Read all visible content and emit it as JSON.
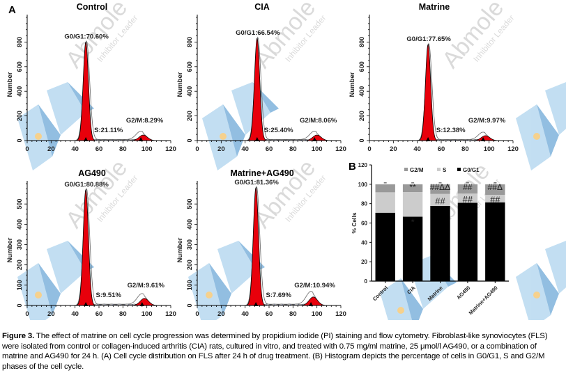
{
  "figure": {
    "panel_labels": {
      "a": "A",
      "b": "B"
    },
    "watermark": {
      "brand": "Abmole",
      "tagline": "Inhibitor Leader",
      "colors": {
        "light_blue": "#b8d9f0",
        "mid_blue": "#7fb3dc",
        "dot": "#f5c97a",
        "text": "#bdbdbd"
      }
    },
    "colors": {
      "peak_fill": "#e8000b",
      "s_hatch": "#3344aa",
      "bar_g0g1": "#000000",
      "bar_s": "#cccccc",
      "bar_g2m": "#999999"
    }
  },
  "chart_data": [
    {
      "type": "area",
      "panel": "A",
      "title": "Control",
      "xlabel": "",
      "ylabel": "Number",
      "xlim": [
        0,
        120
      ],
      "ylim": [
        0,
        1000
      ],
      "xticks": [
        0,
        20,
        40,
        60,
        80,
        100,
        120
      ],
      "yticks": [
        0,
        200,
        400,
        600,
        800
      ],
      "peaks": {
        "g0g1_center": 49,
        "g0g1_height": 800,
        "g2m_center": 97,
        "g2m_height": 45
      },
      "annotations": {
        "g0g1": "G0/G1:70.60%",
        "s": "S:21.11%",
        "g2m": "G2/M:8.29%"
      }
    },
    {
      "type": "area",
      "panel": "A",
      "title": "CIA",
      "xlabel": "",
      "ylabel": "Number",
      "xlim": [
        0,
        120
      ],
      "ylim": [
        0,
        1000
      ],
      "xticks": [
        0,
        20,
        40,
        60,
        80,
        100,
        120
      ],
      "yticks": [
        0,
        200,
        400,
        600,
        800
      ],
      "peaks": {
        "g0g1_center": 50,
        "g0g1_height": 830,
        "g2m_center": 100,
        "g2m_height": 45
      },
      "annotations": {
        "g0g1": "G0/G1:66.54%",
        "s": "S:25.40%",
        "g2m": "G2/M:8.06%"
      }
    },
    {
      "type": "area",
      "panel": "A",
      "title": "Matrine",
      "xlabel": "",
      "ylabel": "Number",
      "xlim": [
        0,
        120
      ],
      "ylim": [
        0,
        1000
      ],
      "xticks": [
        0,
        20,
        40,
        60,
        80,
        100,
        120
      ],
      "yticks": [
        0,
        200,
        400,
        600,
        800
      ],
      "peaks": {
        "g0g1_center": 49,
        "g0g1_height": 780,
        "g2m_center": 97,
        "g2m_height": 40
      },
      "annotations": {
        "g0g1": "G0/G1:77.65%",
        "s": "S:12.38%",
        "g2m": "G2/M:9.97%"
      }
    },
    {
      "type": "area",
      "panel": "A",
      "title": "AG490",
      "xlabel": "",
      "ylabel": "Number",
      "xlim": [
        0,
        120
      ],
      "ylim": [
        0,
        600
      ],
      "xticks": [
        0,
        20,
        40,
        60,
        80,
        100,
        120
      ],
      "yticks": [
        0,
        100,
        200,
        300,
        400,
        500
      ],
      "peaks": {
        "g0g1_center": 49,
        "g0g1_height": 570,
        "g2m_center": 98,
        "g2m_height": 35
      },
      "annotations": {
        "g0g1": "G0/G1:80.88%",
        "s": "S:9.51%",
        "g2m": "G2/M:9.61%"
      }
    },
    {
      "type": "area",
      "panel": "A",
      "title": "Matrine+AG490",
      "xlabel": "",
      "ylabel": "Number",
      "xlim": [
        0,
        120
      ],
      "ylim": [
        0,
        600
      ],
      "xticks": [
        0,
        20,
        40,
        60,
        80,
        100,
        120
      ],
      "yticks": [
        0,
        100,
        200,
        300,
        400,
        500
      ],
      "peaks": {
        "g0g1_center": 49,
        "g0g1_height": 580,
        "g2m_center": 97,
        "g2m_height": 42
      },
      "annotations": {
        "g0g1": "G0/G1:81.36%",
        "s": "S:7.69%",
        "g2m": "G2/M:10.94%"
      }
    },
    {
      "type": "bar",
      "stacked": true,
      "panel": "B",
      "title": "",
      "xlabel": "",
      "ylabel": "% Cells",
      "ylim": [
        0,
        120
      ],
      "yticks": [
        0,
        20,
        40,
        60,
        80,
        100,
        120
      ],
      "legend": {
        "position": "top",
        "entries": [
          "G2/M",
          "S",
          "G0/G1"
        ]
      },
      "categories": [
        "Control",
        "CIA",
        "Matrine",
        "AG490",
        "Matrine+AG490"
      ],
      "series": [
        {
          "name": "G0/G1",
          "values": [
            70.6,
            66.54,
            77.65,
            80.88,
            81.36
          ]
        },
        {
          "name": "S",
          "values": [
            21.11,
            25.4,
            12.38,
            9.51,
            7.69
          ]
        },
        {
          "name": "G2/M",
          "values": [
            8.29,
            8.06,
            9.97,
            9.61,
            10.94
          ]
        }
      ],
      "significance": {
        "g0g1": [
          "",
          "*",
          "",
          "",
          ""
        ],
        "s": [
          "",
          "",
          "##",
          "##",
          "##"
        ],
        "g2m": [
          "",
          "**",
          "##ΔΔ",
          "##",
          "##Δ"
        ]
      }
    }
  ],
  "caption": {
    "label": "Figure 3.",
    "text": " The effect of matrine on cell cycle progression was determined by propidium iodide (PI) staining and flow cytometry. Fibroblast-like synoviocytes (FLS) were isolated from control or collagen-induced arthritis (CIA) rats, cultured in vitro, and treated with 0.75 mg/ml matrine, 25 μmol/l AG490, or a combination of matrine and AG490 for 24 h. (A) Cell cycle distribution on FLS after 24 h of drug treatment. (B) Histogram depicts the percentage of cells in G0/G1, S and G2/M phases of the cell cycle."
  }
}
